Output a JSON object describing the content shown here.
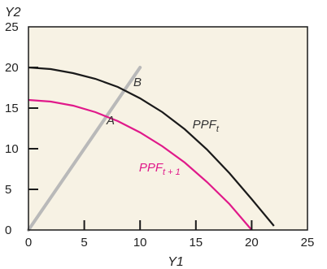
{
  "chart_data": {
    "type": "line",
    "title": "",
    "xlabel": "Y1",
    "ylabel": "Y2",
    "xlim": [
      0,
      25
    ],
    "ylim": [
      0,
      25
    ],
    "x_ticks": [
      0,
      5,
      10,
      15,
      20,
      25
    ],
    "y_ticks": [
      0,
      5,
      10,
      15,
      20,
      25
    ],
    "grid": false,
    "legend": "none",
    "series": [
      {
        "name": "PPF_t",
        "color": "#1a1a1a",
        "points": [
          [
            0,
            20
          ],
          [
            2,
            19.8
          ],
          [
            4,
            19.3
          ],
          [
            6,
            18.6
          ],
          [
            8,
            17.6
          ],
          [
            10,
            16.2
          ],
          [
            12,
            14.5
          ],
          [
            14,
            12.4
          ],
          [
            16,
            9.9
          ],
          [
            18,
            7.0
          ],
          [
            20,
            3.8
          ],
          [
            22,
            0.5
          ]
        ]
      },
      {
        "name": "PPF_t+1",
        "color": "#e0198a",
        "points": [
          [
            0,
            16
          ],
          [
            2,
            15.8
          ],
          [
            4,
            15.3
          ],
          [
            6,
            14.5
          ],
          [
            8,
            13.4
          ],
          [
            10,
            12.0
          ],
          [
            12,
            10.3
          ],
          [
            14,
            8.3
          ],
          [
            16,
            5.9
          ],
          [
            18,
            3.2
          ],
          [
            20,
            0
          ]
        ]
      },
      {
        "name": "ray",
        "color": "#b9b9b9",
        "points": [
          [
            0,
            0
          ],
          [
            10,
            20
          ]
        ]
      }
    ],
    "annotations": [
      {
        "label": "A",
        "x": 7.0,
        "y": 13.0,
        "color": "#333333"
      },
      {
        "label": "B",
        "x": 9.4,
        "y": 17.7,
        "color": "#333333"
      }
    ],
    "series_labels": [
      {
        "main": "PPF",
        "sub": "t",
        "x": 14.7,
        "y": 12.5,
        "color": "#333333"
      },
      {
        "main": "PPF",
        "sub": "t + 1",
        "x": 9.9,
        "y": 7.2,
        "color": "#e0198a"
      }
    ]
  }
}
